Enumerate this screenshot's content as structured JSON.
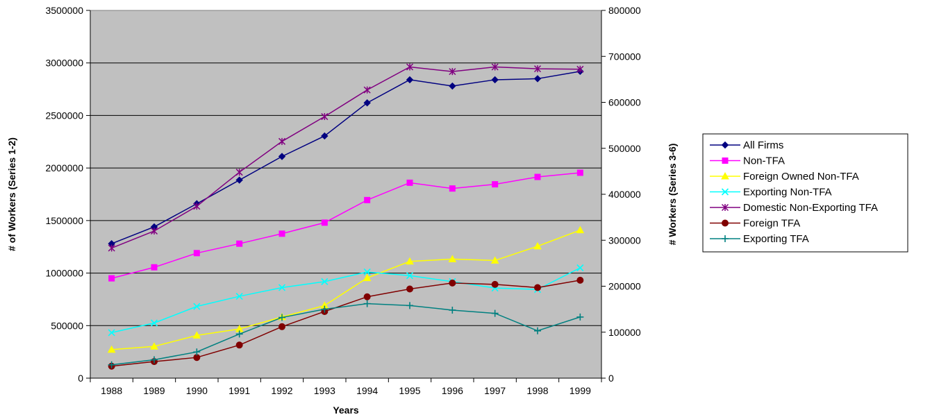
{
  "chart_data": {
    "type": "line",
    "categories": [
      "1988",
      "1989",
      "1990",
      "1991",
      "1992",
      "1993",
      "1994",
      "1995",
      "1996",
      "1997",
      "1998",
      "1999"
    ],
    "xlabel": "Years",
    "ylabel_left": "# of Workers (Series 1-2)",
    "ylabel_right": "# Workers (Series 3-6)",
    "ylim_left": [
      0,
      3500000
    ],
    "ylim_right": [
      0,
      800000
    ],
    "yticks_left": [
      "0",
      "500000",
      "1000000",
      "1500000",
      "2000000",
      "2500000",
      "3000000",
      "3500000"
    ],
    "yticks_right": [
      "0",
      "100000",
      "200000",
      "300000",
      "400000",
      "500000",
      "600000",
      "700000",
      "800000"
    ],
    "grid": true,
    "plot_background": "#c0c0c0",
    "legend_position": "right",
    "series": [
      {
        "name": "All Firms",
        "axis": "left",
        "color": "#000080",
        "marker": "diamond",
        "values": [
          1280000,
          1440000,
          1660000,
          1885000,
          2110000,
          2305000,
          2620000,
          2840000,
          2780000,
          2840000,
          2850000,
          2920000
        ]
      },
      {
        "name": "Non-TFA",
        "axis": "left",
        "color": "#ff00ff",
        "marker": "square",
        "values": [
          950000,
          1055000,
          1190000,
          1280000,
          1375000,
          1480000,
          1695000,
          1860000,
          1805000,
          1845000,
          1915000,
          1955000
        ]
      },
      {
        "name": "Foreign Owned Non-TFA",
        "axis": "right",
        "color": "#ffff00",
        "marker": "triangle",
        "values": [
          62000,
          69000,
          93000,
          107000,
          133000,
          158000,
          218000,
          254000,
          259000,
          256000,
          287000,
          322000
        ]
      },
      {
        "name": "Exporting Non-TFA",
        "axis": "right",
        "color": "#00ffff",
        "marker": "x",
        "values": [
          99000,
          120000,
          156000,
          178000,
          197000,
          210000,
          231000,
          223000,
          210000,
          196000,
          193000,
          240000
        ]
      },
      {
        "name": "Domestic Non-Exporting TFA",
        "axis": "right",
        "color": "#800080",
        "marker": "star",
        "values": [
          283000,
          320000,
          374000,
          448000,
          515000,
          569000,
          627000,
          677000,
          667000,
          677000,
          673000,
          672000
        ]
      },
      {
        "name": "Foreign TFA",
        "axis": "right",
        "color": "#800000",
        "marker": "circle",
        "values": [
          26000,
          36000,
          45000,
          72000,
          112000,
          145000,
          177000,
          194000,
          207000,
          204000,
          197000,
          213000
        ]
      },
      {
        "name": "Exporting TFA",
        "axis": "right",
        "color": "#008080",
        "marker": "plus",
        "values": [
          29000,
          40000,
          57000,
          96000,
          132000,
          150000,
          162000,
          158000,
          148000,
          141000,
          103000,
          133000
        ]
      }
    ]
  }
}
